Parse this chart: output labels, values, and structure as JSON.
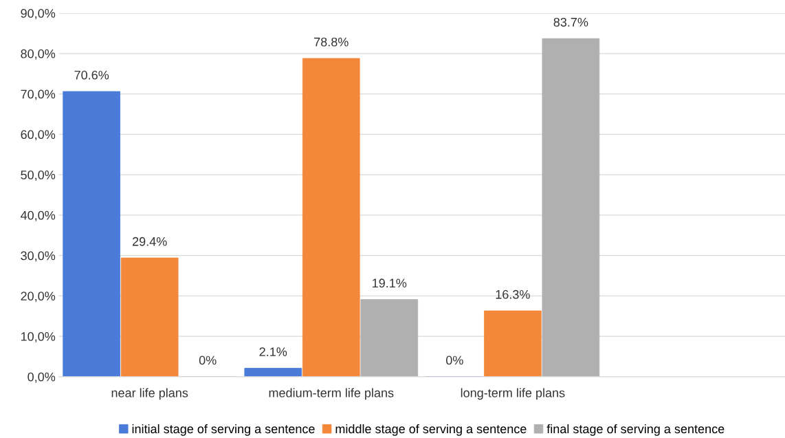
{
  "chart_data": {
    "type": "bar",
    "categories": [
      "near life plans",
      "medium-term life plans",
      "long-term life plans",
      null
    ],
    "series": [
      {
        "name": "initial stage of serving a sentence",
        "color": "#4a7bd8",
        "values": [
          70.6,
          2.1,
          0,
          null
        ],
        "value_labels": [
          "70.6%",
          "2.1%",
          "0%",
          null
        ]
      },
      {
        "name": "middle stage of serving a sentence",
        "color": "#f4883a",
        "values": [
          29.4,
          78.8,
          16.3,
          null
        ],
        "value_labels": [
          "29.4%",
          "78.8%",
          "16.3%",
          null
        ]
      },
      {
        "name": "final stage of serving a sentence",
        "color": "#b0b0b0",
        "values": [
          0,
          19.1,
          83.7,
          null
        ],
        "value_labels": [
          "0%",
          "19.1%",
          "83.7%",
          null
        ]
      }
    ],
    "ylim": [
      0,
      90
    ],
    "yticks": [
      {
        "value": 0,
        "label": "0,0%"
      },
      {
        "value": 10,
        "label": "10,0%"
      },
      {
        "value": 20,
        "label": "20,0%"
      },
      {
        "value": 30,
        "label": "30,0%"
      },
      {
        "value": 40,
        "label": "40,0%"
      },
      {
        "value": 50,
        "label": "50,0%"
      },
      {
        "value": 60,
        "label": "60,0%"
      },
      {
        "value": 70,
        "label": "70,0%"
      },
      {
        "value": 80,
        "label": "80,0%"
      },
      {
        "value": 90,
        "label": "90,0%"
      }
    ],
    "grid": "y",
    "legend": "bottom"
  }
}
